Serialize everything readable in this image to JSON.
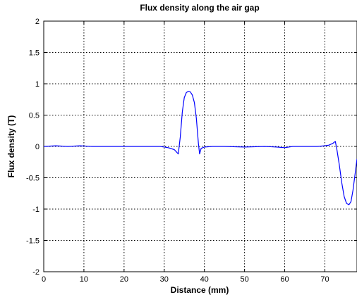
{
  "chart_data": {
    "type": "line",
    "title": "Flux density along the air gap",
    "xlabel": "Distance (mm)",
    "ylabel": "Flux density (T)",
    "xlim": [
      0,
      78
    ],
    "ylim": [
      -2,
      2
    ],
    "x_ticks": [
      0,
      10,
      20,
      30,
      40,
      50,
      60,
      70
    ],
    "x_tick_labels": [
      "0",
      "10",
      "20",
      "30",
      "40",
      "50",
      "60",
      "70"
    ],
    "y_ticks": [
      2,
      1.5,
      1,
      0.5,
      0,
      -0.5,
      -1,
      -1.5,
      -2
    ],
    "y_tick_labels": [
      "2",
      "1.5",
      "1",
      "0.5",
      "0",
      "-0.5",
      "-1",
      "-1.5",
      "-2"
    ],
    "grid": true,
    "line_color": "#0000ff",
    "series": [
      {
        "x": [
          0,
          3,
          6,
          9,
          12,
          15,
          20,
          25,
          29,
          31,
          32.5,
          33.5,
          34,
          34.5,
          35,
          35.5,
          36,
          36.5,
          37,
          37.5,
          38,
          38.5,
          38.8,
          39.2,
          40,
          42,
          45,
          50,
          55,
          58,
          60,
          62,
          65,
          68,
          70,
          71,
          72,
          72.6,
          73,
          73.6,
          74.2,
          74.8,
          75.4,
          76,
          76.5,
          77,
          77.5,
          78
        ],
        "y": [
          0.0,
          0.01,
          0.0,
          0.01,
          0.0,
          0.0,
          0.0,
          0.0,
          0.0,
          -0.02,
          -0.05,
          -0.12,
          0.15,
          0.55,
          0.78,
          0.86,
          0.88,
          0.87,
          0.82,
          0.7,
          0.45,
          0.05,
          -0.12,
          -0.03,
          -0.01,
          0.0,
          0.0,
          -0.01,
          0.0,
          -0.01,
          -0.02,
          0.0,
          0.0,
          0.0,
          0.01,
          0.02,
          0.05,
          0.08,
          -0.05,
          -0.3,
          -0.58,
          -0.8,
          -0.91,
          -0.93,
          -0.88,
          -0.7,
          -0.45,
          -0.2
        ]
      }
    ]
  }
}
